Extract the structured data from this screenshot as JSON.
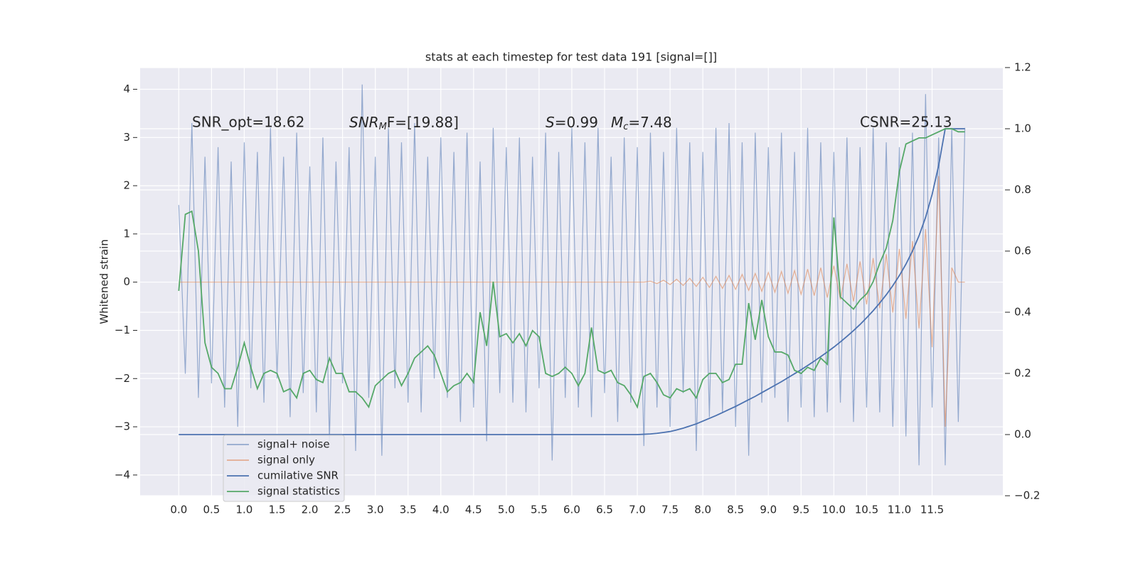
{
  "chart_data": {
    "type": "line",
    "title": "stats at each timestep for test data 191 [signal=[]]",
    "ylabel": "Whitened strain",
    "annotations": {
      "snr_opt": "SNR_opt=18.62",
      "snr_mf": [
        "SNR",
        "M",
        "F=[19.88]"
      ],
      "s": [
        "S",
        "=0.99"
      ],
      "mc": [
        "M",
        "c",
        "=7.48"
      ],
      "csnr": "CSNR=25.13"
    },
    "xlim": [
      -0.59,
      12.58
    ],
    "ylim": [
      -4.43,
      4.45
    ],
    "y2lim": [
      -0.2,
      1.2
    ],
    "xticks": [
      {
        "value": 0,
        "label": "0.0"
      },
      {
        "value": 0.5,
        "label": "0.5"
      },
      {
        "value": 1,
        "label": "1.0"
      },
      {
        "value": 1.5,
        "label": "1.5"
      },
      {
        "value": 2,
        "label": "2.0"
      },
      {
        "value": 2.5,
        "label": "2.5"
      },
      {
        "value": 3,
        "label": "3.0"
      },
      {
        "value": 3.5,
        "label": "3.5"
      },
      {
        "value": 4,
        "label": "4.0"
      },
      {
        "value": 4.5,
        "label": "4.5"
      },
      {
        "value": 5,
        "label": "5.0"
      },
      {
        "value": 5.5,
        "label": "5.5"
      },
      {
        "value": 6,
        "label": "6.0"
      },
      {
        "value": 6.5,
        "label": "6.5"
      },
      {
        "value": 7,
        "label": "7.0"
      },
      {
        "value": 7.5,
        "label": "7.5"
      },
      {
        "value": 8,
        "label": "8.0"
      },
      {
        "value": 8.5,
        "label": "8.5"
      },
      {
        "value": 9,
        "label": "9.0"
      },
      {
        "value": 9.5,
        "label": "9.5"
      },
      {
        "value": 10,
        "label": "10.0"
      },
      {
        "value": 10.5,
        "label": "10.5"
      },
      {
        "value": 11,
        "label": "11.0"
      },
      {
        "value": 11.5,
        "label": "11.5"
      }
    ],
    "yticks": [
      {
        "value": -4,
        "label": "−4"
      },
      {
        "value": -3,
        "label": "−3"
      },
      {
        "value": -2,
        "label": "−2"
      },
      {
        "value": -1,
        "label": "−1"
      },
      0,
      1,
      2,
      3,
      4
    ],
    "y2ticks": [
      {
        "value": -0.2,
        "label": "−0.2"
      },
      {
        "value": 0,
        "label": "0.0"
      },
      0.2,
      0.4,
      0.6,
      0.8,
      {
        "value": 1,
        "label": "1.0"
      },
      1.2
    ],
    "grid": true,
    "legend": "lower left",
    "x": [
      0,
      0.1,
      0.2,
      0.3,
      0.4,
      0.5,
      0.6,
      0.7,
      0.8,
      0.9,
      1,
      1.1,
      1.2,
      1.3,
      1.4,
      1.5,
      1.6,
      1.7,
      1.8,
      1.9,
      2,
      2.1,
      2.2,
      2.3,
      2.4,
      2.5,
      2.6,
      2.7,
      2.8,
      2.9,
      3,
      3.1,
      3.2,
      3.3,
      3.4,
      3.5,
      3.6,
      3.7,
      3.8,
      3.9,
      4,
      4.1,
      4.2,
      4.3,
      4.4,
      4.5,
      4.6,
      4.7,
      4.8,
      4.9,
      5,
      5.1,
      5.2,
      5.3,
      5.4,
      5.5,
      5.6,
      5.7,
      5.8,
      5.9,
      6,
      6.1,
      6.2,
      6.3,
      6.4,
      6.5,
      6.6,
      6.7,
      6.8,
      6.9,
      7,
      7.1,
      7.2,
      7.3,
      7.4,
      7.5,
      7.6,
      7.7,
      7.8,
      7.9,
      8,
      8.1,
      8.2,
      8.3,
      8.4,
      8.5,
      8.6,
      8.7,
      8.8,
      8.9,
      9,
      9.1,
      9.2,
      9.3,
      9.4,
      9.5,
      9.6,
      9.7,
      9.8,
      9.9,
      10,
      10.1,
      10.2,
      10.3,
      10.4,
      10.5,
      10.6,
      10.7,
      10.8,
      10.9,
      11,
      11.1,
      11.2,
      11.3,
      11.4,
      11.5,
      11.6,
      11.7,
      11.8,
      11.9,
      12
    ],
    "series": [
      {
        "name": "signal+ noise",
        "color": "#4c72b0",
        "opacity": 0.55,
        "axis": "y",
        "values": [
          1.6,
          -1.9,
          3.3,
          -2.4,
          2.6,
          -2.1,
          2.8,
          -2.6,
          2.5,
          -3.0,
          2.9,
          -2.2,
          2.7,
          -2.5,
          3.2,
          -2.0,
          2.6,
          -2.8,
          3.1,
          -2.3,
          2.4,
          -2.7,
          3.0,
          -3.3,
          2.5,
          -2.1,
          2.8,
          -3.5,
          4.1,
          -2.4,
          2.6,
          -3.6,
          3.2,
          -2.2,
          2.9,
          -2.5,
          3.3,
          -2.7,
          2.6,
          -2.0,
          3.0,
          -2.4,
          2.7,
          -2.9,
          3.1,
          -2.6,
          2.5,
          -3.3,
          3.2,
          -2.3,
          2.8,
          -2.5,
          3.0,
          -2.7,
          2.6,
          -2.2,
          3.1,
          -3.7,
          2.7,
          -2.4,
          3.2,
          -2.6,
          2.9,
          -2.8,
          3.2,
          -2.3,
          2.6,
          -2.9,
          3.0,
          -2.5,
          2.8,
          -3.4,
          3.1,
          -2.6,
          2.7,
          -3.0,
          3.2,
          -2.3,
          2.9,
          -3.5,
          2.7,
          -2.8,
          3.2,
          -2.7,
          3.3,
          -3.0,
          2.9,
          -3.6,
          3.1,
          -2.5,
          2.8,
          -2.4,
          3.1,
          -2.9,
          2.7,
          -2.6,
          3.2,
          -2.8,
          2.9,
          -2.7,
          2.7,
          -2.5,
          3.0,
          -2.9,
          2.8,
          -2.6,
          3.2,
          -2.7,
          2.9,
          -3.0,
          2.8,
          -3.2,
          3.1,
          -3.8,
          3.9,
          -2.6,
          3.0,
          -3.8,
          3.2,
          -2.9,
          3.2
        ]
      },
      {
        "name": "signal only",
        "color": "#dd8452",
        "opacity": 0.6,
        "axis": "y",
        "values": [
          0,
          0,
          0,
          0,
          0,
          0,
          0,
          0,
          0,
          0,
          0,
          0,
          0,
          0,
          0,
          0,
          0,
          0,
          0,
          0,
          0,
          0,
          0,
          0,
          0,
          0,
          0,
          0,
          0,
          0,
          0,
          0,
          0,
          0,
          0,
          0,
          0,
          0,
          0,
          0,
          0,
          0,
          0,
          0,
          0,
          0,
          0,
          0,
          0,
          0,
          0,
          0,
          0,
          0,
          0,
          0,
          0,
          0,
          0,
          0,
          0,
          0,
          0,
          0,
          0,
          0,
          0,
          0,
          0,
          0,
          0,
          0,
          0.02,
          -0.03,
          0.04,
          -0.05,
          0.06,
          -0.07,
          0.08,
          -0.09,
          0.1,
          -0.11,
          0.12,
          -0.13,
          0.14,
          -0.15,
          0.16,
          -0.17,
          0.18,
          -0.19,
          0.2,
          -0.21,
          0.22,
          -0.23,
          0.24,
          -0.25,
          0.27,
          -0.28,
          0.3,
          -0.32,
          0.34,
          -0.36,
          0.38,
          -0.4,
          0.43,
          -0.46,
          0.5,
          -0.54,
          0.58,
          -0.63,
          0.69,
          -0.76,
          0.85,
          -0.96,
          1.1,
          -1.35,
          2.2,
          -3.0,
          0.3,
          0,
          0
        ]
      },
      {
        "name": "cumilative SNR",
        "color": "#4c72b0",
        "opacity": 1,
        "axis": "y2",
        "values": [
          0,
          0,
          0,
          0,
          0,
          0,
          0,
          0,
          0,
          0,
          0,
          0,
          0,
          0,
          0,
          0,
          0,
          0,
          0,
          0,
          0,
          0,
          0,
          0,
          0,
          0,
          0,
          0,
          0,
          0,
          0,
          0,
          0,
          0,
          0,
          0,
          0,
          0,
          0,
          0,
          0,
          0,
          0,
          0,
          0,
          0,
          0,
          0,
          0,
          0,
          0,
          0,
          0,
          0,
          0,
          0,
          0,
          0,
          0,
          0,
          0,
          0,
          0,
          0,
          0,
          0,
          0,
          0,
          0,
          0,
          0,
          0.001,
          0.002,
          0.004,
          0.007,
          0.01,
          0.015,
          0.021,
          0.028,
          0.035,
          0.044,
          0.053,
          0.062,
          0.072,
          0.082,
          0.092,
          0.103,
          0.114,
          0.125,
          0.137,
          0.149,
          0.161,
          0.173,
          0.186,
          0.199,
          0.212,
          0.226,
          0.24,
          0.255,
          0.27,
          0.286,
          0.303,
          0.321,
          0.34,
          0.36,
          0.382,
          0.405,
          0.43,
          0.457,
          0.487,
          0.52,
          0.557,
          0.6,
          0.65,
          0.71,
          0.785,
          0.88,
          1.0,
          1.0,
          1.0,
          1.0
        ]
      },
      {
        "name": "signal statistics",
        "color": "#55a868",
        "opacity": 1,
        "axis": "y2",
        "values": [
          0.47,
          0.72,
          0.73,
          0.6,
          0.3,
          0.22,
          0.2,
          0.15,
          0.15,
          0.22,
          0.3,
          0.22,
          0.15,
          0.2,
          0.21,
          0.2,
          0.14,
          0.15,
          0.12,
          0.2,
          0.21,
          0.18,
          0.17,
          0.25,
          0.2,
          0.2,
          0.14,
          0.14,
          0.12,
          0.09,
          0.16,
          0.18,
          0.2,
          0.21,
          0.16,
          0.2,
          0.25,
          0.27,
          0.29,
          0.26,
          0.2,
          0.14,
          0.16,
          0.17,
          0.2,
          0.17,
          0.4,
          0.29,
          0.5,
          0.32,
          0.33,
          0.3,
          0.33,
          0.29,
          0.34,
          0.32,
          0.2,
          0.19,
          0.2,
          0.22,
          0.2,
          0.16,
          0.2,
          0.35,
          0.21,
          0.2,
          0.21,
          0.17,
          0.16,
          0.13,
          0.09,
          0.19,
          0.2,
          0.17,
          0.13,
          0.12,
          0.15,
          0.14,
          0.15,
          0.12,
          0.18,
          0.2,
          0.2,
          0.17,
          0.18,
          0.23,
          0.23,
          0.43,
          0.31,
          0.44,
          0.32,
          0.27,
          0.27,
          0.26,
          0.21,
          0.2,
          0.22,
          0.21,
          0.25,
          0.23,
          0.71,
          0.45,
          0.43,
          0.41,
          0.44,
          0.46,
          0.5,
          0.56,
          0.61,
          0.7,
          0.86,
          0.95,
          0.96,
          0.97,
          0.97,
          0.98,
          0.99,
          1.0,
          1.0,
          0.99,
          0.99
        ]
      }
    ]
  }
}
